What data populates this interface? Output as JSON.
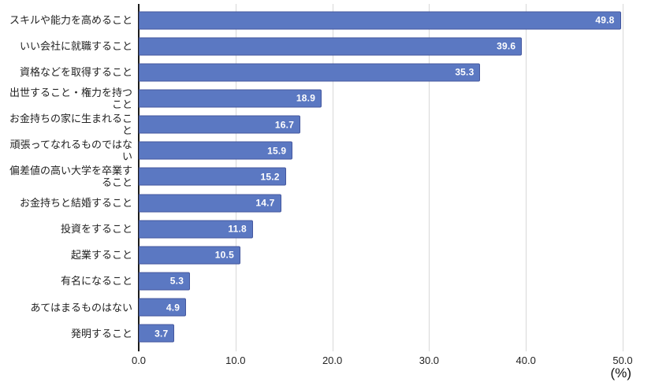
{
  "chart_data": {
    "type": "bar",
    "orientation": "horizontal",
    "title": "",
    "categories": [
      "スキルや能力を高めること",
      "いい会社に就職すること",
      "資格などを取得すること",
      "出世すること・権力を持つこと",
      "お金持ちの家に生まれること",
      "頑張ってなれるものではない",
      "偏差値の高い大学を卒業すること",
      "お金持ちと結婚すること",
      "投資をすること",
      "起業すること",
      "有名になること",
      "あてはまるものはない",
      "発明すること"
    ],
    "category_lines": [
      [
        "スキルや能力を高めること"
      ],
      [
        "いい会社に就職すること"
      ],
      [
        "資格などを取得すること"
      ],
      [
        "出世すること・権力を持つ",
        "こと"
      ],
      [
        "お金持ちの家に生まれるこ",
        "と"
      ],
      [
        "頑張ってなれるものではな",
        "い"
      ],
      [
        "偏差値の高い大学を卒業す",
        "ること"
      ],
      [
        "お金持ちと結婚すること"
      ],
      [
        "投資をすること"
      ],
      [
        "起業すること"
      ],
      [
        "有名になること"
      ],
      [
        "あてはまるものはない"
      ],
      [
        "発明すること"
      ]
    ],
    "values": [
      49.8,
      39.6,
      35.3,
      18.9,
      16.7,
      15.9,
      15.2,
      14.7,
      11.8,
      10.5,
      5.3,
      4.9,
      3.7
    ],
    "value_labels": [
      "49.8",
      "39.6",
      "35.3",
      "18.9",
      "16.7",
      "15.9",
      "15.2",
      "14.7",
      "11.8",
      "10.5",
      "5.3",
      "4.9",
      "3.7"
    ],
    "xlabel": "(%)",
    "xlim": [
      0,
      50
    ],
    "xticks": [
      "0.0",
      "10.0",
      "20.0",
      "30.0",
      "40.0",
      "50.0"
    ],
    "grid": true,
    "legend": false,
    "colors": {
      "bar_fill": "#5B78C2",
      "bar_border": "#44579E",
      "value_label": "#FFFFFF",
      "gridline": "#D8D8D8",
      "axis_line": "#1C1C1C",
      "text": "#222222",
      "background": "#FFFFFF"
    }
  }
}
